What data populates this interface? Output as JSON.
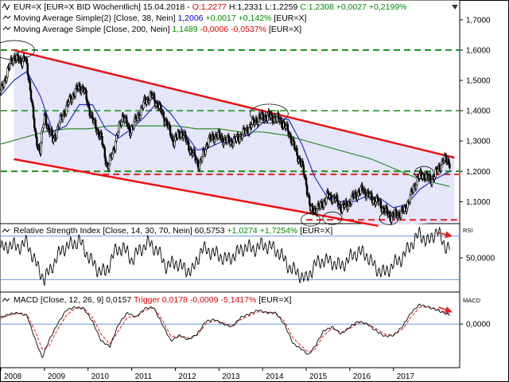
{
  "colors": {
    "black": "#000000",
    "blue": "#0000dd",
    "green": "#008800",
    "red": "#dd0000",
    "channel_line": "#ee1111",
    "channel_fill": "#e6e6fa",
    "ma200": "#2e8b2e",
    "ma38": "#2233cc",
    "level_green": "#1a8c1a",
    "support_red": "#dd2222",
    "ref_blue": "#6699dd"
  },
  "headers": {
    "main_line1": {
      "sym": "EUR=X [EUR=X BID Wöchentlich] 15.04.2018 - ",
      "o": "O:1,2277",
      "h": "H:1,2331",
      "l": "L:1,2259",
      "c": "C:1,2308",
      "chg": "+0,0027",
      "pct": "+0,2199%"
    },
    "main_line2": {
      "label": "Moving Average Simple(2) [Close, 38, Nein] ",
      "value": "1,2006",
      "chg": "+0,0017",
      "pct": "+0,142%",
      "tail": " [EUR=X]"
    },
    "main_line3": {
      "label": "Moving Average Simple [Close, 200, Nein] ",
      "value": "1,1489",
      "chg": "-0,0006",
      "pct": "-0,0537%",
      "tail": " [EUR=X]"
    },
    "rsi": {
      "label": "Relative Strength Index [Close, 14, 30, 70, Nein] 60,5753 ",
      "chg": "+1,0274",
      "pct": "+1,7254%",
      "tail": " [EUR=X]"
    },
    "macd": {
      "label": "MACD [Close, 12, 26, 9] 0,0157 ",
      "trigger": "Trigger",
      "trigger_val": "0,0178",
      "chg": "-0,0009",
      "pct": "-5,1417%",
      "tail": " [EUR=X]"
    }
  },
  "panel_tags": {
    "rsi": "RSI",
    "macd": "MACD"
  },
  "chart_data": [
    {
      "type": "candlestick",
      "name": "EUR=X weekly",
      "x_ticks": [
        "2008",
        "2009",
        "2010",
        "2011",
        "2012",
        "2013",
        "2014",
        "2015",
        "2016",
        "2017"
      ],
      "y_ticks": [
        "1,7000",
        "1,6000",
        "1,5000",
        "1,4000",
        "1,3000",
        "1,2000",
        "1,1000"
      ],
      "ylim": [
        1.03,
        1.76
      ],
      "xlim": [
        2008.0,
        2018.5
      ],
      "series": [
        {
          "name": "Close",
          "x": [
            2008.0,
            2008.15,
            2008.3,
            2008.45,
            2008.55,
            2008.7,
            2008.8,
            2008.9,
            2009.0,
            2009.2,
            2009.4,
            2009.6,
            2009.8,
            2009.9,
            2010.1,
            2010.3,
            2010.45,
            2010.6,
            2010.8,
            2010.95,
            2011.1,
            2011.3,
            2011.45,
            2011.6,
            2011.8,
            2011.95,
            2012.15,
            2012.35,
            2012.55,
            2012.75,
            2012.95,
            2013.15,
            2013.35,
            2013.6,
            2013.85,
            2014.0,
            2014.2,
            2014.4,
            2014.6,
            2014.75,
            2014.9,
            2015.0,
            2015.1,
            2015.3,
            2015.5,
            2015.65,
            2015.8,
            2015.95,
            2016.1,
            2016.3,
            2016.5,
            2016.65,
            2016.8,
            2016.95,
            2017.1,
            2017.25,
            2017.4,
            2017.55,
            2017.7,
            2017.85,
            2018.0,
            2018.15,
            2018.29
          ],
          "values": [
            1.46,
            1.53,
            1.58,
            1.56,
            1.58,
            1.45,
            1.3,
            1.27,
            1.38,
            1.3,
            1.38,
            1.44,
            1.48,
            1.47,
            1.37,
            1.31,
            1.21,
            1.28,
            1.39,
            1.33,
            1.37,
            1.43,
            1.45,
            1.42,
            1.36,
            1.3,
            1.33,
            1.27,
            1.22,
            1.3,
            1.32,
            1.3,
            1.3,
            1.33,
            1.37,
            1.38,
            1.38,
            1.37,
            1.33,
            1.27,
            1.22,
            1.16,
            1.07,
            1.08,
            1.12,
            1.11,
            1.08,
            1.09,
            1.12,
            1.14,
            1.11,
            1.1,
            1.07,
            1.05,
            1.06,
            1.07,
            1.12,
            1.18,
            1.19,
            1.17,
            1.2,
            1.24,
            1.23
          ]
        },
        {
          "name": "Moving Average Simple(2) [Close, 38, Nein]",
          "x": [
            2008.0,
            2008.3,
            2008.6,
            2008.9,
            2009.2,
            2009.5,
            2009.8,
            2010.1,
            2010.4,
            2010.7,
            2011.0,
            2011.3,
            2011.6,
            2011.9,
            2012.2,
            2012.5,
            2012.8,
            2013.1,
            2013.4,
            2013.7,
            2014.0,
            2014.3,
            2014.6,
            2014.9,
            2015.2,
            2015.5,
            2015.8,
            2016.1,
            2016.4,
            2016.7,
            2017.0,
            2017.3,
            2017.6,
            2017.9,
            2018.29
          ],
          "values": [
            1.45,
            1.5,
            1.53,
            1.45,
            1.33,
            1.35,
            1.42,
            1.42,
            1.34,
            1.31,
            1.34,
            1.38,
            1.43,
            1.39,
            1.33,
            1.27,
            1.28,
            1.3,
            1.31,
            1.32,
            1.36,
            1.38,
            1.37,
            1.29,
            1.18,
            1.11,
            1.1,
            1.1,
            1.12,
            1.11,
            1.08,
            1.09,
            1.14,
            1.17,
            1.2
          ]
        },
        {
          "name": "Moving Average Simple [Close, 200, Nein]",
          "x": [
            2008.0,
            2008.5,
            2009.0,
            2009.5,
            2010.0,
            2010.5,
            2011.0,
            2011.5,
            2012.0,
            2012.5,
            2013.0,
            2013.5,
            2014.0,
            2014.5,
            2015.0,
            2015.5,
            2016.0,
            2016.5,
            2017.0,
            2017.5,
            2018.0,
            2018.29
          ],
          "values": [
            1.29,
            1.31,
            1.33,
            1.34,
            1.34,
            1.35,
            1.35,
            1.35,
            1.35,
            1.34,
            1.34,
            1.33,
            1.33,
            1.32,
            1.3,
            1.28,
            1.26,
            1.24,
            1.21,
            1.18,
            1.16,
            1.15
          ]
        }
      ],
      "lines": {
        "resistance_channel": [
          [
            2008.3,
            1.6
          ],
          [
            2018.4,
            1.245
          ]
        ],
        "support_channel": [
          [
            2008.3,
            1.24
          ],
          [
            2016.65,
            1.02
          ]
        ],
        "level_1_6": 1.6,
        "level_1_4": 1.4,
        "level_1_2": 1.2,
        "level_1_19_red": 1.19,
        "level_1_04_red": 1.04
      },
      "highlight_circles": [
        {
          "x": 2008.3,
          "y": 1.6
        },
        {
          "x": 2014.15,
          "y": 1.39
        },
        {
          "x": 2015.1,
          "y": 1.04
        },
        {
          "x": 2015.6,
          "y": 1.045
        },
        {
          "x": 2016.9,
          "y": 1.045
        },
        {
          "x": 2017.7,
          "y": 1.195
        }
      ]
    },
    {
      "type": "line",
      "name": "Relative Strength Index [Close, 14, 30, 70, Nein]",
      "y_ticks": [
        "50,0000"
      ],
      "ylim": [
        20,
        80
      ],
      "ref_levels": [
        70,
        30
      ],
      "series": [
        {
          "name": "RSI",
          "x": [
            2008.0,
            2008.2,
            2008.4,
            2008.6,
            2008.8,
            2009.0,
            2009.2,
            2009.4,
            2009.6,
            2009.8,
            2010.0,
            2010.2,
            2010.4,
            2010.6,
            2010.8,
            2011.0,
            2011.2,
            2011.4,
            2011.6,
            2011.8,
            2012.0,
            2012.2,
            2012.4,
            2012.6,
            2012.8,
            2013.0,
            2013.2,
            2013.4,
            2013.6,
            2013.8,
            2014.0,
            2014.2,
            2014.4,
            2014.6,
            2014.8,
            2015.0,
            2015.2,
            2015.4,
            2015.6,
            2015.8,
            2016.0,
            2016.2,
            2016.4,
            2016.6,
            2016.8,
            2017.0,
            2017.2,
            2017.4,
            2017.6,
            2017.8,
            2018.0,
            2018.15,
            2018.29
          ],
          "values": [
            58,
            62,
            60,
            64,
            45,
            30,
            44,
            58,
            62,
            66,
            52,
            40,
            36,
            55,
            60,
            48,
            58,
            64,
            56,
            42,
            46,
            40,
            38,
            58,
            56,
            52,
            48,
            54,
            60,
            58,
            62,
            60,
            54,
            42,
            36,
            30,
            44,
            48,
            46,
            42,
            50,
            56,
            52,
            40,
            36,
            44,
            50,
            62,
            72,
            64,
            76,
            62,
            60
          ]
        }
      ],
      "annotations": [
        {
          "type": "arrow",
          "from": [
            2018.0,
            73
          ],
          "to": [
            2018.29,
            70
          ]
        }
      ]
    },
    {
      "type": "line",
      "name": "MACD [Close, 12, 26, 9]",
      "y_ticks": [
        "0,0000"
      ],
      "ylim": [
        -0.075,
        0.05
      ],
      "series": [
        {
          "name": "MACD",
          "x": [
            2008.0,
            2008.2,
            2008.4,
            2008.6,
            2008.8,
            2008.95,
            2009.1,
            2009.3,
            2009.5,
            2009.7,
            2009.9,
            2010.1,
            2010.3,
            2010.5,
            2010.7,
            2010.9,
            2011.1,
            2011.3,
            2011.5,
            2011.7,
            2011.9,
            2012.1,
            2012.3,
            2012.5,
            2012.7,
            2012.9,
            2013.1,
            2013.3,
            2013.5,
            2013.7,
            2013.9,
            2014.1,
            2014.3,
            2014.5,
            2014.7,
            2014.9,
            2015.05,
            2015.2,
            2015.4,
            2015.6,
            2015.8,
            2016.0,
            2016.2,
            2016.4,
            2016.6,
            2016.8,
            2017.0,
            2017.2,
            2017.4,
            2017.6,
            2017.8,
            2018.0,
            2018.15,
            2018.29
          ],
          "values": [
            0.012,
            0.018,
            0.02,
            0.015,
            -0.03,
            -0.06,
            -0.03,
            0.0,
            0.025,
            0.03,
            0.028,
            0.005,
            -0.03,
            -0.04,
            0.0,
            0.02,
            0.012,
            0.028,
            0.03,
            0.0,
            -0.03,
            -0.02,
            -0.028,
            -0.018,
            0.005,
            0.008,
            0.0,
            -0.005,
            0.012,
            0.018,
            0.025,
            0.02,
            0.02,
            0.0,
            -0.035,
            -0.045,
            -0.055,
            -0.04,
            -0.012,
            -0.005,
            -0.018,
            -0.005,
            0.005,
            0.0,
            -0.012,
            -0.022,
            -0.02,
            -0.005,
            0.02,
            0.035,
            0.03,
            0.025,
            0.02,
            0.016
          ]
        },
        {
          "name": "Trigger",
          "x": [
            2008.0,
            2008.2,
            2008.4,
            2008.6,
            2008.8,
            2008.95,
            2009.1,
            2009.3,
            2009.5,
            2009.7,
            2009.9,
            2010.1,
            2010.3,
            2010.5,
            2010.7,
            2010.9,
            2011.1,
            2011.3,
            2011.5,
            2011.7,
            2011.9,
            2012.1,
            2012.3,
            2012.5,
            2012.7,
            2012.9,
            2013.1,
            2013.3,
            2013.5,
            2013.7,
            2013.9,
            2014.1,
            2014.3,
            2014.5,
            2014.7,
            2014.9,
            2015.05,
            2015.2,
            2015.4,
            2015.6,
            2015.8,
            2016.0,
            2016.2,
            2016.4,
            2016.6,
            2016.8,
            2017.0,
            2017.2,
            2017.4,
            2017.6,
            2017.8,
            2018.0,
            2018.15,
            2018.29
          ],
          "values": [
            0.01,
            0.016,
            0.019,
            0.017,
            -0.015,
            -0.045,
            -0.04,
            -0.01,
            0.015,
            0.028,
            0.029,
            0.012,
            -0.018,
            -0.036,
            -0.012,
            0.012,
            0.014,
            0.024,
            0.029,
            0.008,
            -0.022,
            -0.022,
            -0.025,
            -0.02,
            0.0,
            0.006,
            0.002,
            -0.003,
            0.008,
            0.015,
            0.022,
            0.021,
            0.02,
            0.005,
            -0.025,
            -0.04,
            -0.05,
            -0.045,
            -0.02,
            -0.008,
            -0.015,
            -0.008,
            0.002,
            0.001,
            -0.008,
            -0.018,
            -0.02,
            -0.01,
            0.012,
            0.03,
            0.031,
            0.027,
            0.022,
            0.018
          ]
        }
      ],
      "annotations": [
        {
          "type": "arrow",
          "from": [
            2018.0,
            0.03
          ],
          "to": [
            2018.29,
            0.022
          ]
        }
      ]
    }
  ]
}
